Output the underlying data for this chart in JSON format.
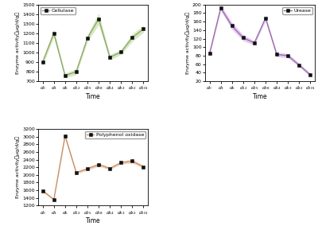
{
  "x_labels": [
    "d0",
    "d3",
    "d6",
    "d12",
    "d25",
    "d38",
    "d44",
    "d63",
    "d82",
    "d101"
  ],
  "x_vals": [
    0,
    1,
    2,
    3,
    4,
    5,
    6,
    7,
    8,
    9
  ],
  "cellulase_y": [
    900,
    1200,
    760,
    800,
    1150,
    1350,
    950,
    1005,
    1155,
    1245
  ],
  "cellulase_yerr": [
    30,
    40,
    25,
    30,
    35,
    60,
    30,
    25,
    40,
    35
  ],
  "cellulase_color": "#8aab6a",
  "cellulase_fill": "#c5dba4",
  "cellulase_ylim": [
    700,
    1500
  ],
  "cellulase_yticks": [
    700,
    800,
    900,
    1000,
    1100,
    1200,
    1300,
    1400,
    1500
  ],
  "cellulase_label": "Cellulase",
  "cellulase_legend_loc": "upper left",
  "urease_y": [
    85,
    192,
    150,
    122,
    110,
    168,
    83,
    80,
    58,
    35
  ],
  "urease_yerr": [
    5,
    6,
    8,
    7,
    5,
    6,
    5,
    5,
    4,
    4
  ],
  "urease_color": "#9b6fac",
  "urease_fill": "#d4aee8",
  "urease_ylim": [
    20,
    200
  ],
  "urease_yticks": [
    20,
    40,
    60,
    80,
    100,
    120,
    140,
    160,
    180,
    200
  ],
  "urease_label": "Urease",
  "urease_legend_loc": "upper right",
  "ppo_y": [
    1590,
    1360,
    3020,
    2060,
    2160,
    2270,
    2170,
    2320,
    2360,
    2210
  ],
  "ppo_yerr": [
    30,
    25,
    50,
    35,
    40,
    45,
    35,
    40,
    50,
    40
  ],
  "ppo_color": "#c8926a",
  "ppo_fill": "#e8c4a8",
  "ppo_ylim": [
    1200,
    3200
  ],
  "ppo_yticks": [
    1200,
    1400,
    1600,
    1800,
    2000,
    2200,
    2400,
    2600,
    2800,
    3000,
    3200
  ],
  "ppo_label": "Polyphenol oxidase",
  "ppo_legend_loc": "upper right",
  "ylabel": "Enzyme activity（μg/d/g）",
  "xlabel": "Time",
  "marker": "s",
  "markersize": 3.5,
  "linewidth": 1.0,
  "background_color": "#ffffff"
}
